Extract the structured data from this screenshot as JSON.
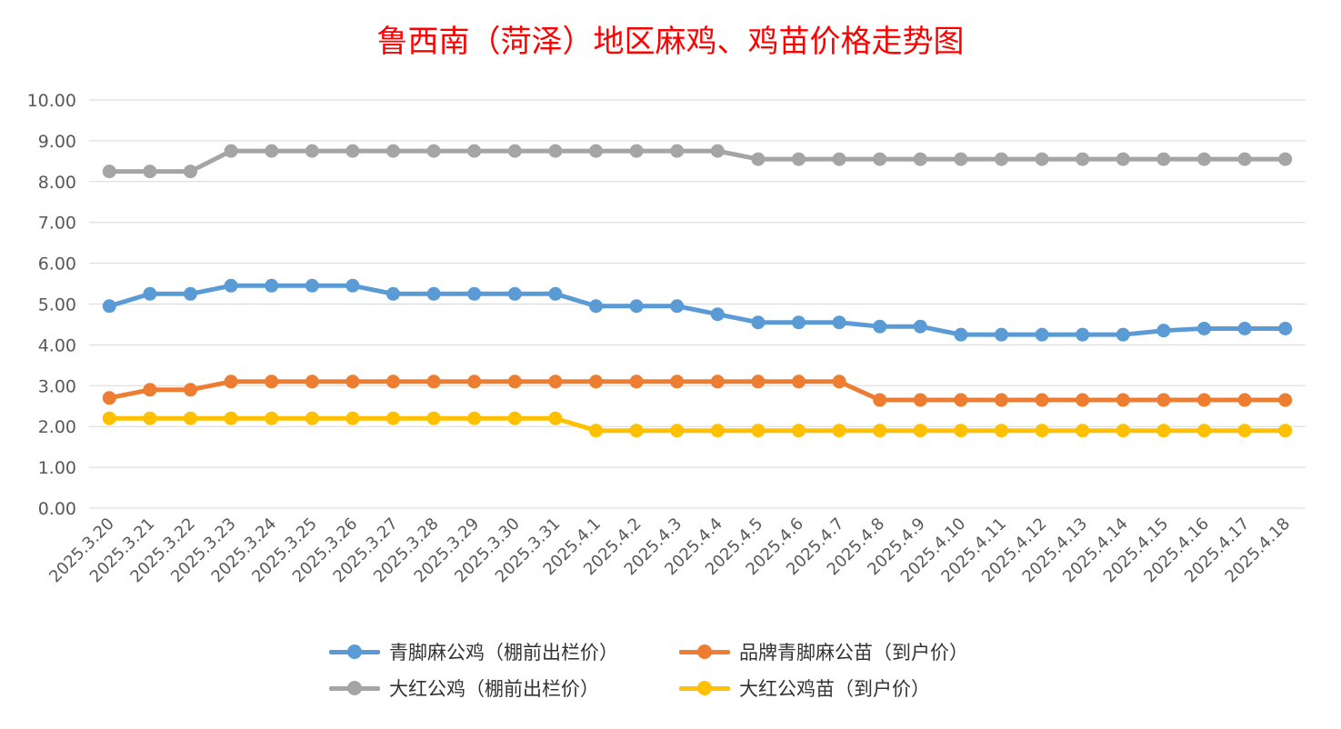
{
  "chart_data": {
    "type": "line",
    "title": "鲁西南（菏泽）地区麻鸡、鸡苗价格走势图",
    "xlabel": "",
    "ylabel": "",
    "ylim": [
      0,
      10
    ],
    "yticks": [
      "0.00",
      "1.00",
      "2.00",
      "3.00",
      "4.00",
      "5.00",
      "6.00",
      "7.00",
      "8.00",
      "9.00",
      "10.00"
    ],
    "grid": true,
    "legend_position": "bottom",
    "categories": [
      "2025.3.20",
      "2025.3.21",
      "2025.3.22",
      "2025.3.23",
      "2025.3.24",
      "2025.3.25",
      "2025.3.26",
      "2025.3.27",
      "2025.3.28",
      "2025.3.29",
      "2025.3.30",
      "2025.3.31",
      "2025.4.1",
      "2025.4.2",
      "2025.4.3",
      "2025.4.4",
      "2025.4.5",
      "2025.4.6",
      "2025.4.7",
      "2025.4.8",
      "2025.4.9",
      "2025.4.10",
      "2025.4.11",
      "2025.4.12",
      "2025.4.13",
      "2025.4.14",
      "2025.4.15",
      "2025.4.16",
      "2025.4.17",
      "2025.4.18"
    ],
    "series": [
      {
        "name": "青脚麻公鸡（棚前出栏价）",
        "color": "#5b9bd5",
        "values": [
          4.95,
          5.25,
          5.25,
          5.45,
          5.45,
          5.45,
          5.45,
          5.25,
          5.25,
          5.25,
          5.25,
          5.25,
          4.95,
          4.95,
          4.95,
          4.75,
          4.55,
          4.55,
          4.55,
          4.45,
          4.45,
          4.25,
          4.25,
          4.25,
          4.25,
          4.25,
          4.35,
          4.4,
          4.4,
          4.4
        ]
      },
      {
        "name": "品牌青脚麻公苗（到户价）",
        "color": "#ed7d31",
        "values": [
          2.7,
          2.9,
          2.9,
          3.1,
          3.1,
          3.1,
          3.1,
          3.1,
          3.1,
          3.1,
          3.1,
          3.1,
          3.1,
          3.1,
          3.1,
          3.1,
          3.1,
          3.1,
          3.1,
          2.65,
          2.65,
          2.65,
          2.65,
          2.65,
          2.65,
          2.65,
          2.65,
          2.65,
          2.65,
          2.65
        ]
      },
      {
        "name": "大红公鸡（棚前出栏价）",
        "color": "#a5a5a5",
        "values": [
          8.25,
          8.25,
          8.25,
          8.75,
          8.75,
          8.75,
          8.75,
          8.75,
          8.75,
          8.75,
          8.75,
          8.75,
          8.75,
          8.75,
          8.75,
          8.75,
          8.55,
          8.55,
          8.55,
          8.55,
          8.55,
          8.55,
          8.55,
          8.55,
          8.55,
          8.55,
          8.55,
          8.55,
          8.55,
          8.55
        ]
      },
      {
        "name": "大红公鸡苗（到户价）",
        "color": "#ffc000",
        "values": [
          2.2,
          2.2,
          2.2,
          2.2,
          2.2,
          2.2,
          2.2,
          2.2,
          2.2,
          2.2,
          2.2,
          2.2,
          1.9,
          1.9,
          1.9,
          1.9,
          1.9,
          1.9,
          1.9,
          1.9,
          1.9,
          1.9,
          1.9,
          1.9,
          1.9,
          1.9,
          1.9,
          1.9,
          1.9,
          1.9
        ]
      }
    ]
  }
}
